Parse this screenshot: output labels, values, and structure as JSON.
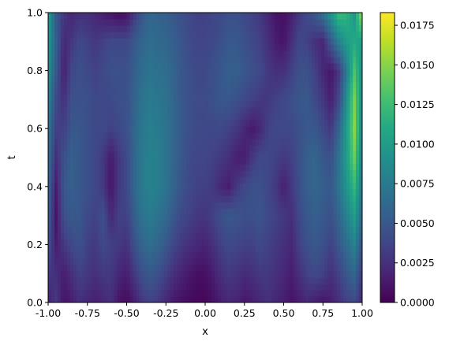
{
  "chart_data": {
    "type": "heatmap",
    "title": "",
    "xlabel": "x",
    "ylabel": "t",
    "xlim": [
      -1.0,
      1.0
    ],
    "ylim": [
      0.0,
      1.0
    ],
    "x_ticks": [
      "-1.00",
      "-0.75",
      "-0.50",
      "-0.25",
      "0.00",
      "0.25",
      "0.50",
      "0.75",
      "1.00"
    ],
    "x_tick_values": [
      -1.0,
      -0.75,
      -0.5,
      -0.25,
      0.0,
      0.25,
      0.5,
      0.75,
      1.0
    ],
    "y_ticks": [
      "0.0",
      "0.2",
      "0.4",
      "0.6",
      "0.8",
      "1.0"
    ],
    "y_tick_values": [
      0.0,
      0.2,
      0.4,
      0.6,
      0.8,
      1.0
    ],
    "colorbar": {
      "vmin": 0.0,
      "vmax": 0.0183,
      "ticks": [
        "0.0000",
        "0.0025",
        "0.0050",
        "0.0075",
        "0.0100",
        "0.0125",
        "0.0150",
        "0.0175"
      ],
      "tick_values": [
        0.0,
        0.0025,
        0.005,
        0.0075,
        0.01,
        0.0125,
        0.015,
        0.0175
      ],
      "colormap": "viridis"
    },
    "grid": false,
    "x_samples": [
      -1.0,
      -0.95,
      -0.9,
      -0.85,
      -0.8,
      -0.75,
      -0.7,
      -0.65,
      -0.6,
      -0.55,
      -0.5,
      -0.45,
      -0.4,
      -0.35,
      -0.3,
      -0.25,
      -0.2,
      -0.15,
      -0.1,
      -0.05,
      0.0,
      0.05,
      0.1,
      0.15,
      0.2,
      0.25,
      0.3,
      0.35,
      0.4,
      0.45,
      0.5,
      0.55,
      0.6,
      0.65,
      0.7,
      0.75,
      0.8,
      0.85,
      0.9,
      0.95,
      1.0
    ],
    "t_samples": [
      0.0,
      0.1,
      0.2,
      0.3,
      0.4,
      0.5,
      0.6,
      0.7,
      0.8,
      0.9,
      1.0
    ],
    "values": [
      [
        0.0015,
        0.003,
        0.001,
        0.0015,
        0.0025,
        0.002,
        0.0015,
        0.002,
        0.0025,
        0.001,
        0.0005,
        0.0015,
        0.003,
        0.0035,
        0.003,
        0.002,
        0.0012,
        0.0008,
        0.0005,
        0.0003,
        0.0003,
        0.0008,
        0.0015,
        0.002,
        0.0018,
        0.0012,
        0.0015,
        0.002,
        0.0025,
        0.002,
        0.0015,
        0.001,
        0.0015,
        0.002,
        0.0015,
        0.001,
        0.0015,
        0.0025,
        0.0035,
        0.004,
        0.002
      ],
      [
        0.003,
        0.0025,
        0.0015,
        0.0025,
        0.0035,
        0.003,
        0.0025,
        0.003,
        0.003,
        0.002,
        0.0015,
        0.003,
        0.0045,
        0.005,
        0.0045,
        0.0035,
        0.0025,
        0.0018,
        0.0012,
        0.0008,
        0.0008,
        0.0015,
        0.0025,
        0.003,
        0.0028,
        0.0022,
        0.0025,
        0.003,
        0.003,
        0.0025,
        0.002,
        0.0015,
        0.0025,
        0.0035,
        0.004,
        0.0035,
        0.0025,
        0.0035,
        0.005,
        0.006,
        0.003
      ],
      [
        0.0045,
        0.0015,
        0.003,
        0.004,
        0.0045,
        0.0035,
        0.003,
        0.004,
        0.0035,
        0.003,
        0.0025,
        0.0045,
        0.006,
        0.0065,
        0.006,
        0.005,
        0.0038,
        0.003,
        0.0025,
        0.002,
        0.0018,
        0.0025,
        0.0035,
        0.004,
        0.0038,
        0.0035,
        0.0035,
        0.004,
        0.0035,
        0.003,
        0.0025,
        0.002,
        0.0035,
        0.0045,
        0.005,
        0.0045,
        0.0035,
        0.005,
        0.0065,
        0.008,
        0.0045
      ],
      [
        0.0055,
        0.001,
        0.0045,
        0.005,
        0.005,
        0.004,
        0.0035,
        0.0045,
        0.002,
        0.0035,
        0.0035,
        0.0055,
        0.007,
        0.0075,
        0.007,
        0.0062,
        0.005,
        0.004,
        0.0035,
        0.003,
        0.0028,
        0.0035,
        0.0045,
        0.005,
        0.0048,
        0.0045,
        0.0045,
        0.0048,
        0.004,
        0.0035,
        0.003,
        0.0025,
        0.004,
        0.005,
        0.0055,
        0.005,
        0.0045,
        0.006,
        0.008,
        0.01,
        0.006
      ],
      [
        0.006,
        0.0015,
        0.005,
        0.0055,
        0.005,
        0.0045,
        0.004,
        0.003,
        0.001,
        0.003,
        0.004,
        0.006,
        0.0075,
        0.008,
        0.0078,
        0.007,
        0.0058,
        0.0048,
        0.004,
        0.0035,
        0.0035,
        0.003,
        0.002,
        0.0015,
        0.003,
        0.004,
        0.0045,
        0.0045,
        0.0038,
        0.003,
        0.0015,
        0.003,
        0.0045,
        0.0055,
        0.006,
        0.0055,
        0.005,
        0.007,
        0.0095,
        0.012,
        0.007
      ],
      [
        0.0065,
        0.0025,
        0.0045,
        0.0055,
        0.005,
        0.0045,
        0.004,
        0.003,
        0.0012,
        0.003,
        0.004,
        0.006,
        0.0075,
        0.008,
        0.0078,
        0.007,
        0.006,
        0.005,
        0.0042,
        0.0038,
        0.0038,
        0.0035,
        0.003,
        0.0025,
        0.0015,
        0.0015,
        0.003,
        0.004,
        0.004,
        0.0035,
        0.003,
        0.0035,
        0.0045,
        0.0055,
        0.006,
        0.005,
        0.0045,
        0.007,
        0.01,
        0.014,
        0.0075
      ],
      [
        0.007,
        0.0035,
        0.0035,
        0.005,
        0.005,
        0.0045,
        0.004,
        0.004,
        0.0035,
        0.004,
        0.0045,
        0.006,
        0.0072,
        0.0078,
        0.0075,
        0.007,
        0.006,
        0.005,
        0.0045,
        0.004,
        0.004,
        0.004,
        0.004,
        0.0035,
        0.003,
        0.002,
        0.0012,
        0.002,
        0.0035,
        0.004,
        0.004,
        0.004,
        0.0045,
        0.005,
        0.005,
        0.004,
        0.003,
        0.006,
        0.01,
        0.015,
        0.008
      ],
      [
        0.008,
        0.004,
        0.0025,
        0.0045,
        0.0045,
        0.0045,
        0.004,
        0.004,
        0.004,
        0.0045,
        0.0045,
        0.0058,
        0.007,
        0.0075,
        0.0072,
        0.0068,
        0.006,
        0.005,
        0.0045,
        0.0042,
        0.0042,
        0.0045,
        0.005,
        0.005,
        0.0045,
        0.004,
        0.0035,
        0.003,
        0.003,
        0.0035,
        0.004,
        0.0045,
        0.005,
        0.005,
        0.004,
        0.003,
        0.0015,
        0.004,
        0.009,
        0.0145,
        0.0085
      ],
      [
        0.009,
        0.005,
        0.0015,
        0.004,
        0.0045,
        0.004,
        0.0035,
        0.004,
        0.0045,
        0.0045,
        0.0045,
        0.0055,
        0.0065,
        0.007,
        0.0068,
        0.0065,
        0.0058,
        0.005,
        0.0045,
        0.004,
        0.004,
        0.0045,
        0.005,
        0.0055,
        0.0055,
        0.005,
        0.0045,
        0.004,
        0.003,
        0.0025,
        0.0025,
        0.0035,
        0.0045,
        0.0045,
        0.0035,
        0.002,
        0.001,
        0.003,
        0.0075,
        0.013,
        0.009
      ],
      [
        0.0095,
        0.0055,
        0.002,
        0.003,
        0.004,
        0.0035,
        0.003,
        0.0035,
        0.004,
        0.004,
        0.004,
        0.005,
        0.006,
        0.0065,
        0.0062,
        0.006,
        0.0055,
        0.0048,
        0.0042,
        0.0038,
        0.0038,
        0.004,
        0.0045,
        0.005,
        0.005,
        0.0045,
        0.004,
        0.0035,
        0.0025,
        0.0015,
        0.001,
        0.0025,
        0.004,
        0.0035,
        0.0025,
        0.002,
        0.005,
        0.008,
        0.01,
        0.011,
        0.01
      ],
      [
        0.01,
        0.005,
        0.003,
        0.002,
        0.0025,
        0.0025,
        0.002,
        0.0015,
        0.001,
        0.0005,
        0.0008,
        0.003,
        0.005,
        0.006,
        0.0058,
        0.0055,
        0.005,
        0.0045,
        0.004,
        0.0035,
        0.0035,
        0.0038,
        0.004,
        0.0045,
        0.0045,
        0.004,
        0.0035,
        0.003,
        0.002,
        0.001,
        0.0008,
        0.0015,
        0.003,
        0.004,
        0.005,
        0.007,
        0.0095,
        0.0125,
        0.012,
        0.0095,
        0.016
      ]
    ]
  }
}
